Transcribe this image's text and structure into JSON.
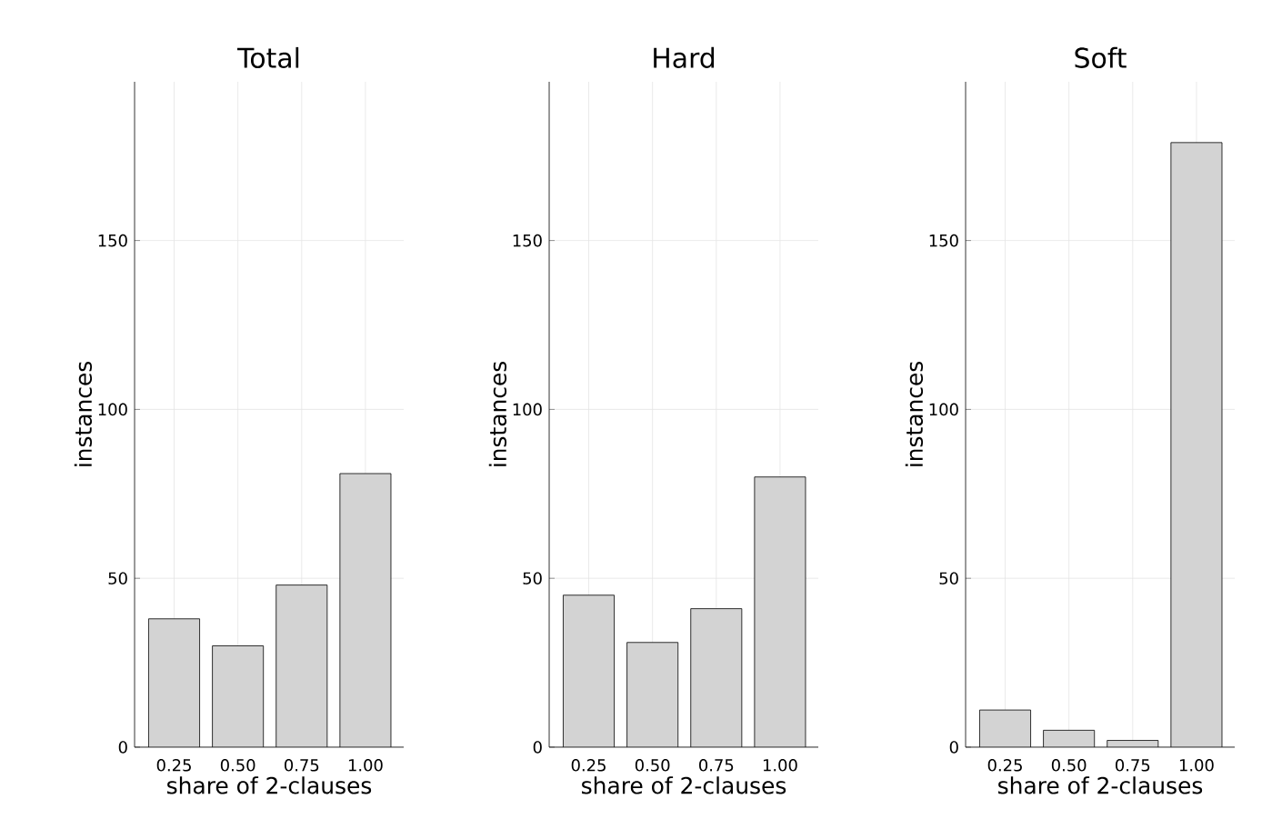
{
  "chart_data": [
    {
      "type": "bar",
      "title": "Total",
      "xlabel": "share of 2-clauses",
      "ylabel": "instances",
      "categories": [
        "0.25",
        "0.50",
        "0.75",
        "1.00"
      ],
      "values": [
        38,
        30,
        48,
        81
      ],
      "color": "#d3d3d3",
      "ylim": [
        0,
        197
      ],
      "yticks": [
        0,
        50,
        100,
        150
      ],
      "grid": true
    },
    {
      "type": "bar",
      "title": "Hard",
      "xlabel": "share of 2-clauses",
      "ylabel": "instances",
      "categories": [
        "0.25",
        "0.50",
        "0.75",
        "1.00"
      ],
      "values": [
        45,
        31,
        41,
        80
      ],
      "color": "#d3d3d3",
      "ylim": [
        0,
        197
      ],
      "yticks": [
        0,
        50,
        100,
        150
      ],
      "grid": true
    },
    {
      "type": "bar",
      "title": "Soft",
      "xlabel": "share of 2-clauses",
      "ylabel": "instances",
      "categories": [
        "0.25",
        "0.50",
        "0.75",
        "1.00"
      ],
      "values": [
        11,
        5,
        2,
        179
      ],
      "color": "#d3d3d3",
      "ylim": [
        0,
        197
      ],
      "yticks": [
        0,
        50,
        100,
        150
      ],
      "grid": true
    }
  ]
}
